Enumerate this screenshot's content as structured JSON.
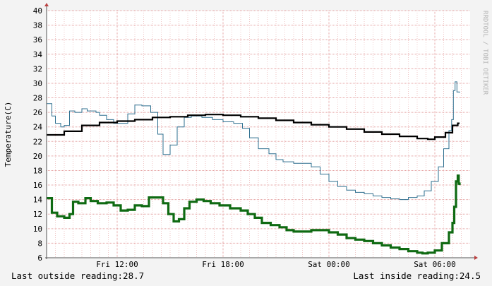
{
  "chart_data": {
    "type": "line",
    "ylabel": "Temperature(C)",
    "watermark": "RRDTOOL / TOBI OETIKER",
    "ylim": [
      6,
      40
    ],
    "y_ticks": [
      6,
      8,
      10,
      12,
      14,
      16,
      18,
      20,
      22,
      24,
      26,
      28,
      30,
      32,
      34,
      36,
      38,
      40
    ],
    "xlim": [
      "Fri 08:00",
      "Sat 10:00"
    ],
    "x_ticks": [
      {
        "label": "Fri 12:00",
        "hours": 4
      },
      {
        "label": "Fri 18:00",
        "hours": 10
      },
      {
        "label": "Sat 00:00",
        "hours": 16
      },
      {
        "label": "Sat 06:00",
        "hours": 22
      }
    ],
    "grid": true,
    "series": [
      {
        "color": "#2e6f8f",
        "points": [
          [
            0,
            27.2
          ],
          [
            0.3,
            25.5
          ],
          [
            0.5,
            24.5
          ],
          [
            0.8,
            24
          ],
          [
            1,
            24.2
          ],
          [
            1.3,
            26.2
          ],
          [
            1.6,
            26
          ],
          [
            2,
            26.5
          ],
          [
            2.3,
            26.2
          ],
          [
            2.8,
            26
          ],
          [
            3,
            25.6
          ],
          [
            3.4,
            25
          ],
          [
            3.8,
            24.5
          ],
          [
            4.2,
            24.5
          ],
          [
            4.6,
            25.8
          ],
          [
            5,
            27
          ],
          [
            5.4,
            26.9
          ],
          [
            5.9,
            26
          ],
          [
            6.3,
            23
          ],
          [
            6.6,
            20.2
          ],
          [
            7,
            21.5
          ],
          [
            7.4,
            24
          ],
          [
            7.8,
            25.3
          ],
          [
            8.2,
            25.5
          ],
          [
            8.8,
            25.3
          ],
          [
            9.4,
            25
          ],
          [
            10,
            24.7
          ],
          [
            10.6,
            24.5
          ],
          [
            11.1,
            23.8
          ],
          [
            11.5,
            22.5
          ],
          [
            12,
            21
          ],
          [
            12.6,
            20.3
          ],
          [
            13,
            19.5
          ],
          [
            13.4,
            19.2
          ],
          [
            14,
            19
          ],
          [
            14.5,
            19
          ],
          [
            15,
            18.5
          ],
          [
            15.5,
            17.5
          ],
          [
            16,
            16.5
          ],
          [
            16.5,
            15.8
          ],
          [
            17,
            15.3
          ],
          [
            17.5,
            15
          ],
          [
            18,
            14.8
          ],
          [
            18.5,
            14.5
          ],
          [
            19,
            14.3
          ],
          [
            19.5,
            14.1
          ],
          [
            20,
            14
          ],
          [
            20.5,
            14.3
          ],
          [
            21,
            14.5
          ],
          [
            21.4,
            15.2
          ],
          [
            21.8,
            16.5
          ],
          [
            22.2,
            18.5
          ],
          [
            22.5,
            21
          ],
          [
            22.8,
            23.5
          ],
          [
            22.95,
            25
          ],
          [
            23.05,
            29
          ],
          [
            23.15,
            30.2
          ],
          [
            23.25,
            28.8
          ],
          [
            23.4,
            28.7
          ]
        ]
      },
      {
        "color": "#000000",
        "points": [
          [
            0,
            22.9
          ],
          [
            1,
            23.4
          ],
          [
            2,
            24.2
          ],
          [
            3,
            24.6
          ],
          [
            4,
            24.8
          ],
          [
            5,
            25
          ],
          [
            6,
            25.3
          ],
          [
            7,
            25.4
          ],
          [
            8,
            25.6
          ],
          [
            9,
            25.7
          ],
          [
            10,
            25.6
          ],
          [
            11,
            25.4
          ],
          [
            12,
            25.2
          ],
          [
            13,
            24.9
          ],
          [
            14,
            24.6
          ],
          [
            15,
            24.3
          ],
          [
            16,
            24
          ],
          [
            17,
            23.7
          ],
          [
            18,
            23.3
          ],
          [
            19,
            23
          ],
          [
            20,
            22.7
          ],
          [
            21,
            22.4
          ],
          [
            21.6,
            22.3
          ],
          [
            22,
            22.6
          ],
          [
            22.6,
            23.2
          ],
          [
            23,
            24.2
          ],
          [
            23.3,
            24.5
          ],
          [
            23.4,
            24.5
          ]
        ]
      },
      {
        "color": "#0f6a12",
        "points": [
          [
            0,
            14.2
          ],
          [
            0.3,
            12.2
          ],
          [
            0.6,
            11.7
          ],
          [
            1,
            11.5
          ],
          [
            1.3,
            12
          ],
          [
            1.5,
            13.7
          ],
          [
            1.8,
            13.5
          ],
          [
            2.2,
            14.2
          ],
          [
            2.5,
            13.8
          ],
          [
            2.9,
            13.5
          ],
          [
            3.4,
            13.6
          ],
          [
            3.8,
            13.2
          ],
          [
            4.2,
            12.5
          ],
          [
            4.6,
            12.6
          ],
          [
            5,
            13.2
          ],
          [
            5.4,
            13.1
          ],
          [
            5.8,
            14.3
          ],
          [
            6.2,
            14.3
          ],
          [
            6.6,
            13.5
          ],
          [
            6.9,
            12
          ],
          [
            7.2,
            11
          ],
          [
            7.5,
            11.3
          ],
          [
            7.8,
            12.8
          ],
          [
            8.1,
            13.7
          ],
          [
            8.5,
            14
          ],
          [
            8.9,
            13.8
          ],
          [
            9.3,
            13.5
          ],
          [
            9.8,
            13.2
          ],
          [
            10.4,
            12.8
          ],
          [
            11,
            12.5
          ],
          [
            11.4,
            12
          ],
          [
            11.8,
            11.5
          ],
          [
            12.2,
            10.8
          ],
          [
            12.7,
            10.5
          ],
          [
            13.2,
            10.2
          ],
          [
            13.6,
            9.8
          ],
          [
            14,
            9.6
          ],
          [
            14.5,
            9.6
          ],
          [
            15,
            9.8
          ],
          [
            15.5,
            9.8
          ],
          [
            16,
            9.5
          ],
          [
            16.5,
            9.2
          ],
          [
            17,
            8.7
          ],
          [
            17.5,
            8.5
          ],
          [
            18,
            8.3
          ],
          [
            18.5,
            8
          ],
          [
            19,
            7.7
          ],
          [
            19.5,
            7.4
          ],
          [
            20,
            7.2
          ],
          [
            20.5,
            6.9
          ],
          [
            21,
            6.7
          ],
          [
            21.3,
            6.6
          ],
          [
            21.6,
            6.7
          ],
          [
            22,
            7
          ],
          [
            22.4,
            8
          ],
          [
            22.8,
            9.5
          ],
          [
            23,
            10.8
          ],
          [
            23.1,
            13
          ],
          [
            23.2,
            16.5
          ],
          [
            23.3,
            17.3
          ],
          [
            23.35,
            16.2
          ],
          [
            23.4,
            16
          ]
        ]
      }
    ]
  },
  "footer": {
    "left": "Last outside reading:28.7",
    "right": "Last inside reading:24.5"
  }
}
